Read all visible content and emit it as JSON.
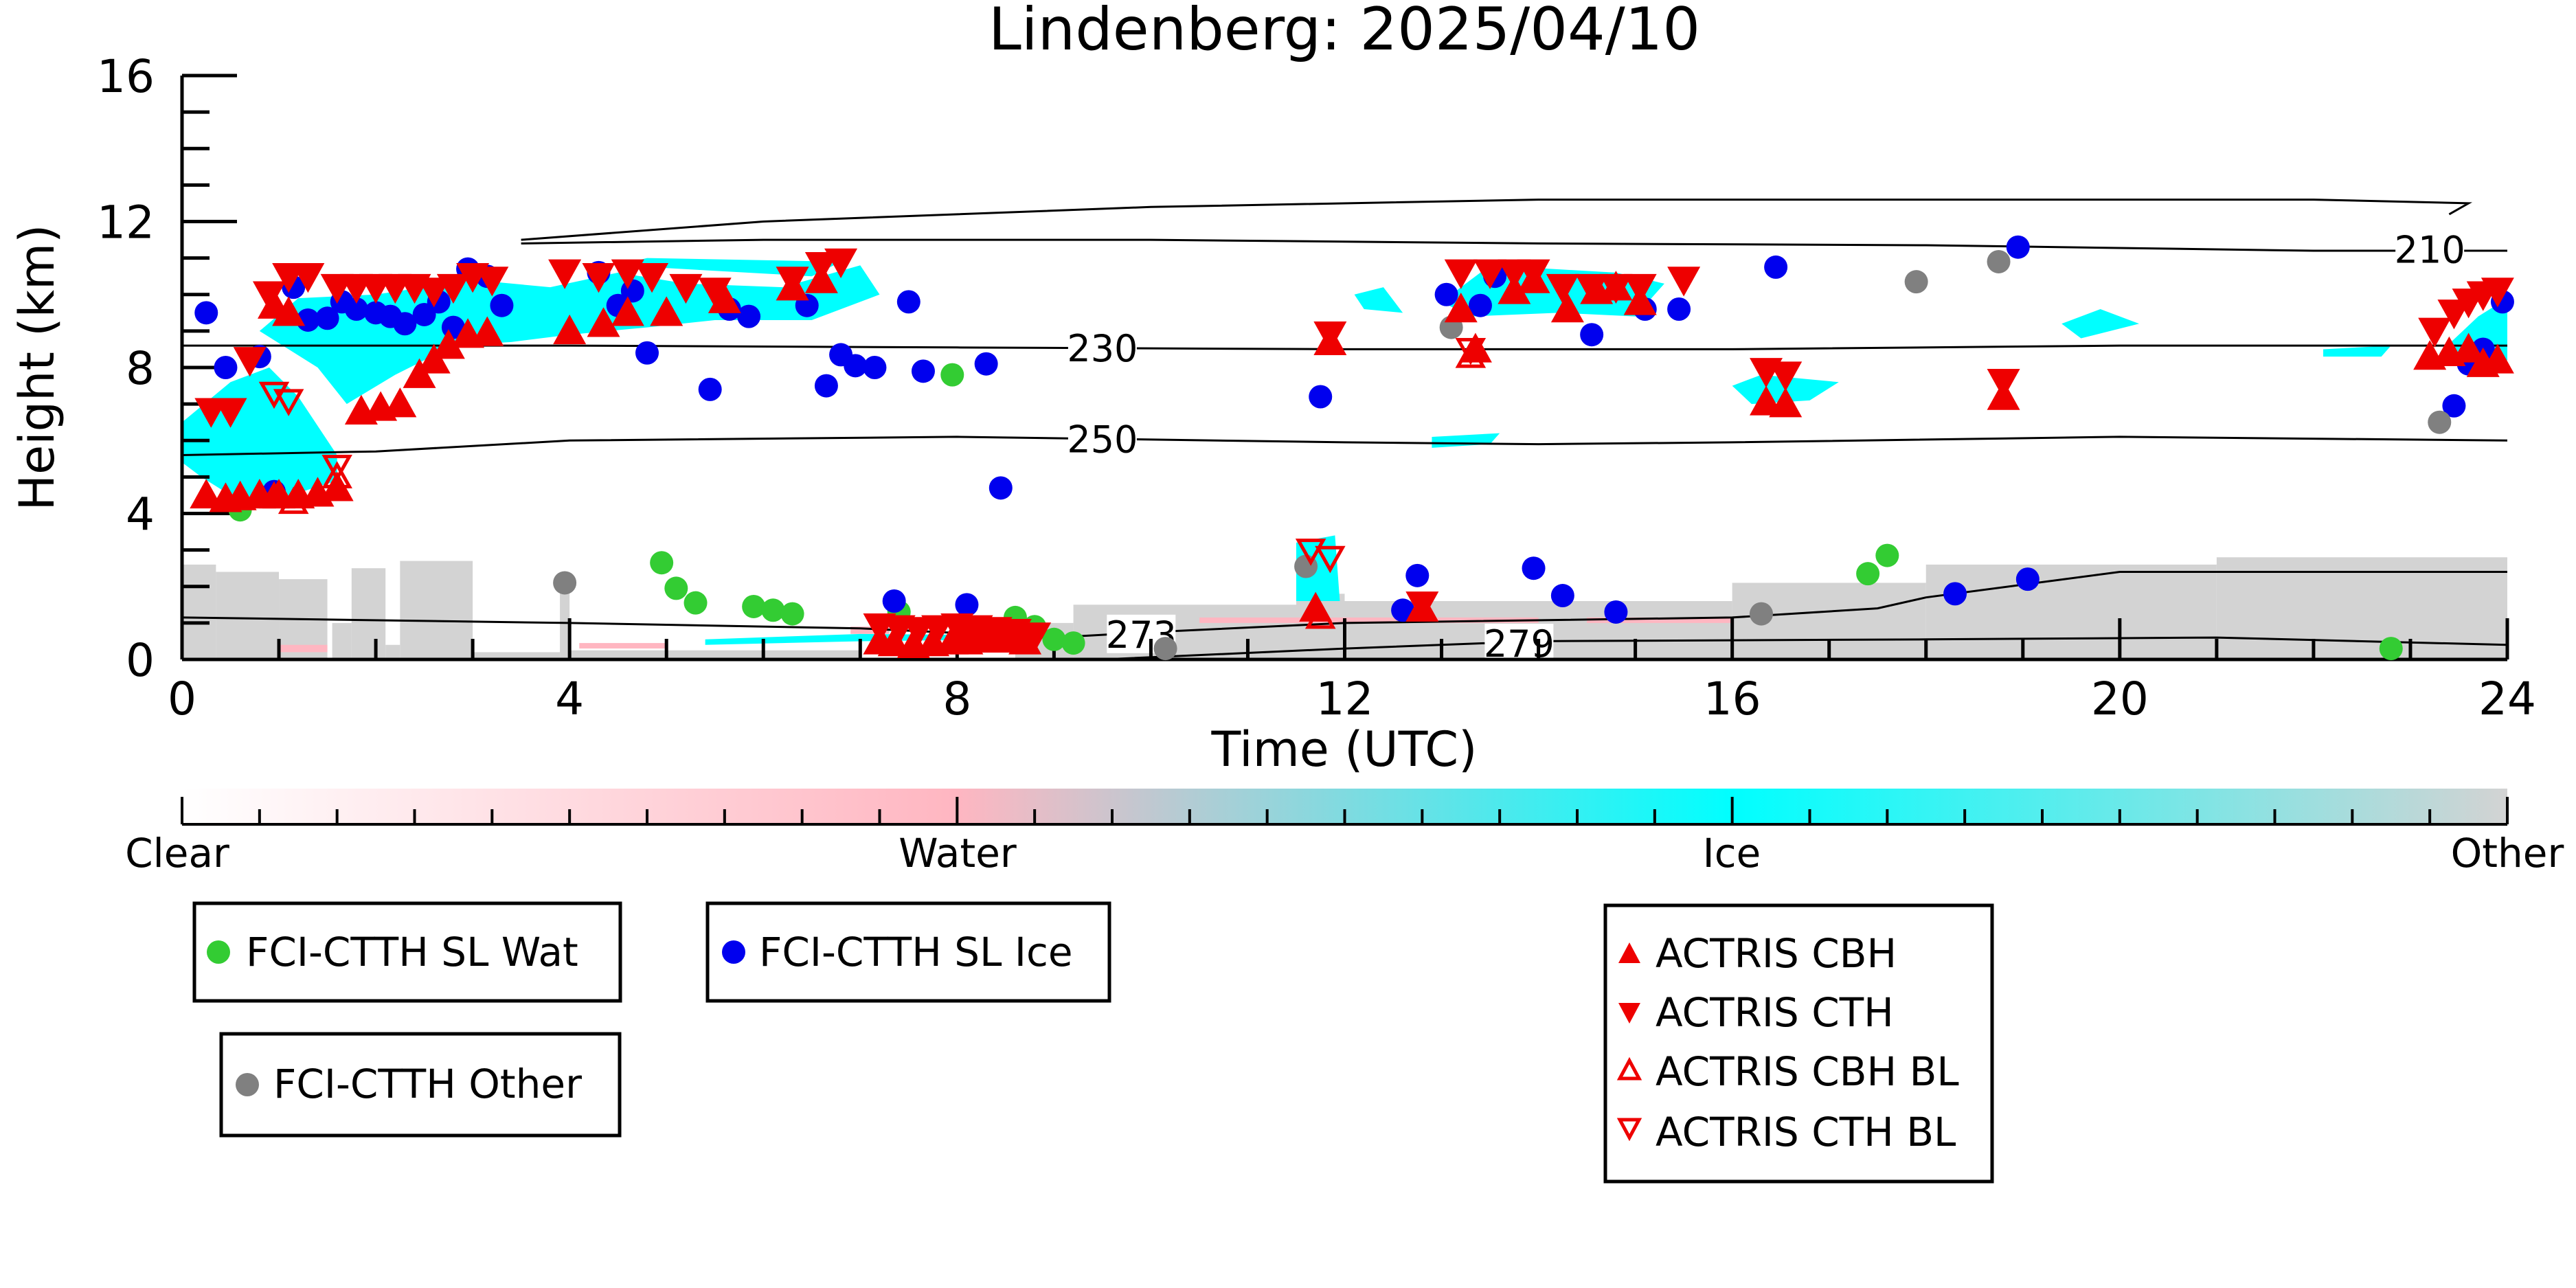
{
  "chart_data": {
    "type": "scatter",
    "title": "Lindenberg: 2025/04/10",
    "xlabel": "Time (UTC)",
    "ylabel": "Height (km)",
    "xlim": [
      0,
      24
    ],
    "ylim": [
      0,
      16
    ],
    "x_ticks": [
      "0",
      "4",
      "8",
      "12",
      "16",
      "20",
      "24"
    ],
    "y_ticks": [
      "0",
      "4",
      "8",
      "12",
      "16"
    ],
    "background": "target classification curtain (Clear / Water / Ice / Other)",
    "colorbar": {
      "labels": [
        "Clear",
        "Water",
        "Ice",
        "Other"
      ],
      "colors": [
        "#ffffff",
        "#ffb6c1",
        "#00ffff",
        "#d3d3d3"
      ]
    },
    "contours": [
      {
        "label": "210",
        "points": [
          [
            3.5,
            11.4
          ],
          [
            6,
            11.5
          ],
          [
            10,
            11.5
          ],
          [
            14,
            11.4
          ],
          [
            18,
            11.35
          ],
          [
            22,
            11.2
          ],
          [
            24,
            11.2
          ]
        ]
      },
      {
        "label": "230",
        "points": [
          [
            0,
            8.6
          ],
          [
            4,
            8.6
          ],
          [
            8,
            8.55
          ],
          [
            12,
            8.5
          ],
          [
            16,
            8.5
          ],
          [
            20,
            8.6
          ],
          [
            24,
            8.6
          ]
        ]
      },
      {
        "label": "250",
        "points": [
          [
            0,
            5.6
          ],
          [
            2,
            5.7
          ],
          [
            4,
            6.0
          ],
          [
            8,
            6.1
          ],
          [
            12,
            5.95
          ],
          [
            14,
            5.9
          ],
          [
            16,
            5.95
          ],
          [
            20,
            6.1
          ],
          [
            24,
            6.0
          ]
        ]
      },
      {
        "label": "273",
        "points": [
          [
            0,
            1.15
          ],
          [
            4,
            1.0
          ],
          [
            7,
            0.85
          ],
          [
            9,
            0.6
          ],
          [
            10,
            0.75
          ],
          [
            12,
            1.0
          ],
          [
            16,
            1.15
          ],
          [
            17.5,
            1.4
          ],
          [
            18,
            1.7
          ],
          [
            20,
            2.4
          ],
          [
            24,
            2.4
          ]
        ]
      },
      {
        "label": "279",
        "points": [
          [
            9.5,
            0.0
          ],
          [
            12,
            0.3
          ],
          [
            14,
            0.5
          ],
          [
            18,
            0.55
          ],
          [
            21,
            0.6
          ],
          [
            24,
            0.4
          ]
        ]
      }
    ],
    "tropo_contour": [
      [
        3.5,
        11.5
      ],
      [
        6,
        12.0
      ],
      [
        10,
        12.4
      ],
      [
        14,
        12.6
      ],
      [
        18,
        12.6
      ],
      [
        22,
        12.6
      ],
      [
        23.6,
        12.5
      ],
      [
        23.4,
        12.2
      ]
    ],
    "series": [
      {
        "name": "FCI-CTTH SL Wat",
        "color": "#33cc33",
        "marker": "circle",
        "points": [
          [
            0.6,
            4.1
          ],
          [
            4.95,
            2.65
          ],
          [
            5.1,
            1.95
          ],
          [
            5.3,
            1.55
          ],
          [
            5.9,
            1.45
          ],
          [
            6.1,
            1.35
          ],
          [
            6.3,
            1.25
          ],
          [
            7.4,
            1.3
          ],
          [
            7.95,
            7.8
          ],
          [
            8.6,
            1.15
          ],
          [
            8.8,
            0.9
          ],
          [
            9.0,
            0.55
          ],
          [
            9.2,
            0.45
          ],
          [
            17.4,
            2.35
          ],
          [
            17.6,
            2.85
          ],
          [
            22.8,
            0.3
          ]
        ]
      },
      {
        "name": "FCI-CTTH SL Ice",
        "color": "#0000ee",
        "marker": "circle",
        "points": [
          [
            0.25,
            9.5
          ],
          [
            0.45,
            8.0
          ],
          [
            0.8,
            8.3
          ],
          [
            0.95,
            4.6
          ],
          [
            1.15,
            10.2
          ],
          [
            1.3,
            9.3
          ],
          [
            1.5,
            9.35
          ],
          [
            1.65,
            9.8
          ],
          [
            1.8,
            9.6
          ],
          [
            2.0,
            9.5
          ],
          [
            2.15,
            9.4
          ],
          [
            2.3,
            9.2
          ],
          [
            2.5,
            9.45
          ],
          [
            2.65,
            9.8
          ],
          [
            2.8,
            9.1
          ],
          [
            2.95,
            10.7
          ],
          [
            3.15,
            10.5
          ],
          [
            3.3,
            9.7
          ],
          [
            4.3,
            10.6
          ],
          [
            4.5,
            9.7
          ],
          [
            4.65,
            10.1
          ],
          [
            4.8,
            8.4
          ],
          [
            5.45,
            7.4
          ],
          [
            5.65,
            9.6
          ],
          [
            5.85,
            9.4
          ],
          [
            6.45,
            9.7
          ],
          [
            6.65,
            7.5
          ],
          [
            6.8,
            8.35
          ],
          [
            6.95,
            8.05
          ],
          [
            7.15,
            8.0
          ],
          [
            7.35,
            1.6
          ],
          [
            7.5,
            9.8
          ],
          [
            7.65,
            7.9
          ],
          [
            8.1,
            1.5
          ],
          [
            8.3,
            8.1
          ],
          [
            8.45,
            4.7
          ],
          [
            11.75,
            7.2
          ],
          [
            12.6,
            1.35
          ],
          [
            12.75,
            2.3
          ],
          [
            13.05,
            10.0
          ],
          [
            13.4,
            9.7
          ],
          [
            13.55,
            10.5
          ],
          [
            13.95,
            2.5
          ],
          [
            14.25,
            1.75
          ],
          [
            14.55,
            8.9
          ],
          [
            14.8,
            1.3
          ],
          [
            15.1,
            9.6
          ],
          [
            15.45,
            9.6
          ],
          [
            16.45,
            10.75
          ],
          [
            18.3,
            1.8
          ],
          [
            18.95,
            11.3
          ],
          [
            19.05,
            2.2
          ],
          [
            23.45,
            6.95
          ],
          [
            23.6,
            8.1
          ],
          [
            23.75,
            8.5
          ],
          [
            23.95,
            9.8
          ]
        ]
      },
      {
        "name": "FCI-CTTH Other",
        "color": "#808080",
        "marker": "circle",
        "points": [
          [
            3.95,
            2.1
          ],
          [
            10.15,
            0.3
          ],
          [
            11.6,
            2.55
          ],
          [
            13.1,
            9.1
          ],
          [
            16.3,
            1.25
          ],
          [
            17.9,
            10.35
          ],
          [
            18.75,
            10.9
          ],
          [
            23.3,
            6.5
          ]
        ]
      },
      {
        "name": "ACTRIS CBH",
        "color": "#ee0000",
        "marker": "triangle-up",
        "points": [
          [
            0.25,
            4.5
          ],
          [
            0.45,
            4.4
          ],
          [
            0.6,
            4.45
          ],
          [
            0.8,
            4.5
          ],
          [
            1.0,
            4.5
          ],
          [
            1.2,
            4.5
          ],
          [
            1.4,
            4.55
          ],
          [
            1.6,
            4.7
          ],
          [
            1.85,
            6.8
          ],
          [
            2.05,
            6.9
          ],
          [
            2.25,
            7.0
          ],
          [
            2.45,
            7.8
          ],
          [
            2.6,
            8.2
          ],
          [
            2.75,
            8.6
          ],
          [
            2.95,
            8.9
          ],
          [
            3.15,
            8.95
          ],
          [
            0.95,
            9.7
          ],
          [
            1.1,
            9.5
          ],
          [
            4.0,
            9.0
          ],
          [
            4.35,
            9.2
          ],
          [
            4.6,
            9.5
          ],
          [
            5.0,
            9.5
          ],
          [
            5.6,
            9.85
          ],
          [
            6.3,
            10.2
          ],
          [
            6.6,
            10.4
          ],
          [
            7.2,
            0.5
          ],
          [
            7.35,
            0.45
          ],
          [
            7.55,
            0.4
          ],
          [
            7.75,
            0.45
          ],
          [
            7.95,
            0.5
          ],
          [
            8.1,
            0.5
          ],
          [
            8.3,
            0.55
          ],
          [
            8.5,
            0.55
          ],
          [
            8.7,
            0.5
          ],
          [
            11.7,
            1.4
          ],
          [
            11.85,
            8.7
          ],
          [
            12.8,
            1.4
          ],
          [
            13.2,
            9.6
          ],
          [
            13.35,
            8.5
          ],
          [
            13.75,
            10.1
          ],
          [
            13.95,
            10.4
          ],
          [
            14.3,
            9.6
          ],
          [
            14.6,
            10.1
          ],
          [
            14.8,
            10.2
          ],
          [
            15.05,
            9.8
          ],
          [
            16.35,
            7.05
          ],
          [
            16.55,
            7.0
          ],
          [
            18.8,
            7.2
          ],
          [
            23.2,
            8.3
          ],
          [
            23.4,
            8.4
          ],
          [
            23.6,
            8.5
          ],
          [
            23.75,
            8.1
          ],
          [
            23.9,
            8.2
          ]
        ]
      },
      {
        "name": "ACTRIS CTH",
        "color": "#ee0000",
        "marker": "triangle-down",
        "points": [
          [
            0.3,
            6.8
          ],
          [
            0.5,
            6.8
          ],
          [
            0.7,
            8.2
          ],
          [
            0.9,
            10.0
          ],
          [
            1.1,
            10.5
          ],
          [
            1.3,
            10.5
          ],
          [
            1.6,
            10.2
          ],
          [
            1.8,
            10.2
          ],
          [
            2.0,
            10.2
          ],
          [
            2.2,
            10.2
          ],
          [
            2.4,
            10.2
          ],
          [
            2.6,
            10.1
          ],
          [
            2.8,
            10.2
          ],
          [
            3.0,
            10.5
          ],
          [
            3.2,
            10.4
          ],
          [
            3.95,
            10.6
          ],
          [
            4.3,
            10.5
          ],
          [
            4.6,
            10.6
          ],
          [
            4.85,
            10.5
          ],
          [
            5.2,
            10.2
          ],
          [
            5.5,
            10.1
          ],
          [
            6.3,
            10.4
          ],
          [
            6.6,
            10.8
          ],
          [
            6.8,
            10.9
          ],
          [
            7.2,
            0.9
          ],
          [
            7.4,
            0.85
          ],
          [
            7.6,
            0.8
          ],
          [
            7.8,
            0.85
          ],
          [
            8.0,
            0.9
          ],
          [
            8.2,
            0.85
          ],
          [
            8.4,
            0.8
          ],
          [
            8.6,
            0.75
          ],
          [
            8.8,
            0.65
          ],
          [
            11.85,
            8.9
          ],
          [
            12.8,
            1.5
          ],
          [
            13.2,
            10.6
          ],
          [
            13.5,
            10.6
          ],
          [
            13.75,
            10.6
          ],
          [
            13.95,
            10.6
          ],
          [
            14.25,
            10.2
          ],
          [
            14.55,
            10.2
          ],
          [
            14.8,
            10.2
          ],
          [
            15.05,
            10.2
          ],
          [
            15.5,
            10.4
          ],
          [
            16.35,
            7.9
          ],
          [
            16.55,
            7.8
          ],
          [
            18.8,
            7.6
          ],
          [
            23.25,
            9.0
          ],
          [
            23.45,
            9.5
          ],
          [
            23.6,
            9.8
          ],
          [
            23.75,
            10.0
          ],
          [
            23.9,
            10.1
          ]
        ]
      },
      {
        "name": "ACTRIS CBH BL",
        "color": "#ee0000",
        "marker": "triangle-up-open",
        "points": [
          [
            0.95,
            4.45
          ],
          [
            1.15,
            4.3
          ],
          [
            1.6,
            5.0
          ],
          [
            11.75,
            1.15
          ],
          [
            13.3,
            8.3
          ]
        ]
      },
      {
        "name": "ACTRIS CTH BL",
        "color": "#ee0000",
        "marker": "triangle-down-open",
        "points": [
          [
            0.95,
            7.3
          ],
          [
            1.1,
            7.1
          ],
          [
            1.6,
            5.3
          ],
          [
            11.65,
            3.0
          ],
          [
            11.85,
            2.8
          ],
          [
            13.3,
            8.5
          ]
        ]
      }
    ],
    "legend_placement": "below"
  }
}
